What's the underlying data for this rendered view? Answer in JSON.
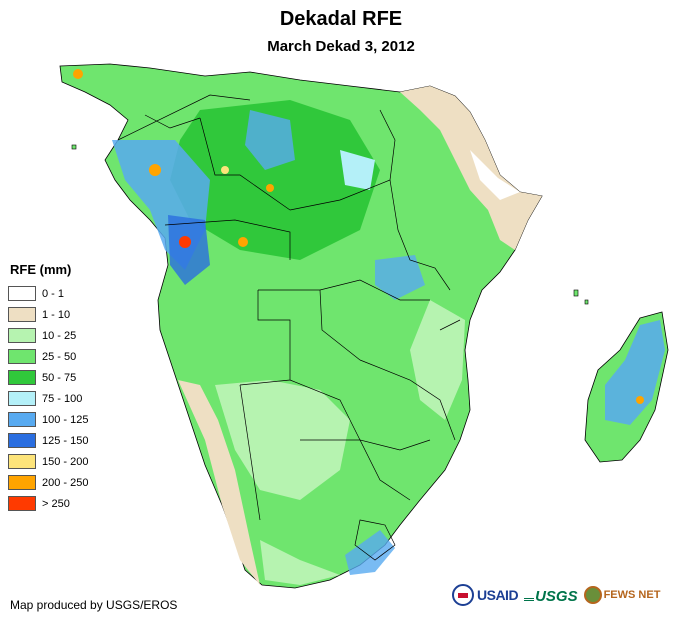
{
  "header": {
    "title": "Dekadal RFE",
    "subtitle": "March Dekad 3, 2012"
  },
  "legend": {
    "title": "RFE (mm)",
    "items": [
      {
        "label": "0 - 1",
        "color": "#ffffff"
      },
      {
        "label": "1 - 10",
        "color": "#eedfc3"
      },
      {
        "label": "10 - 25",
        "color": "#b6f3b0"
      },
      {
        "label": "25 - 50",
        "color": "#6fe56e"
      },
      {
        "label": "50 - 75",
        "color": "#30c83b"
      },
      {
        "label": "75 - 100",
        "color": "#b4f0f8"
      },
      {
        "label": "100 - 125",
        "color": "#58aaf0"
      },
      {
        "label": "125 - 150",
        "color": "#2a6ee0"
      },
      {
        "label": "150 - 200",
        "color": "#fde47a"
      },
      {
        "label": "200 - 250",
        "color": "#ffa400"
      },
      {
        "label": "> 250",
        "color": "#ff3a00"
      }
    ]
  },
  "footer": {
    "credit": "Map produced by USGS/EROS"
  },
  "logos": {
    "usaid": "USAID",
    "usgs": "USGS",
    "fews": "FEWS NET"
  },
  "map_colors": {
    "ocean": "#ffffff",
    "border": "#000000"
  }
}
